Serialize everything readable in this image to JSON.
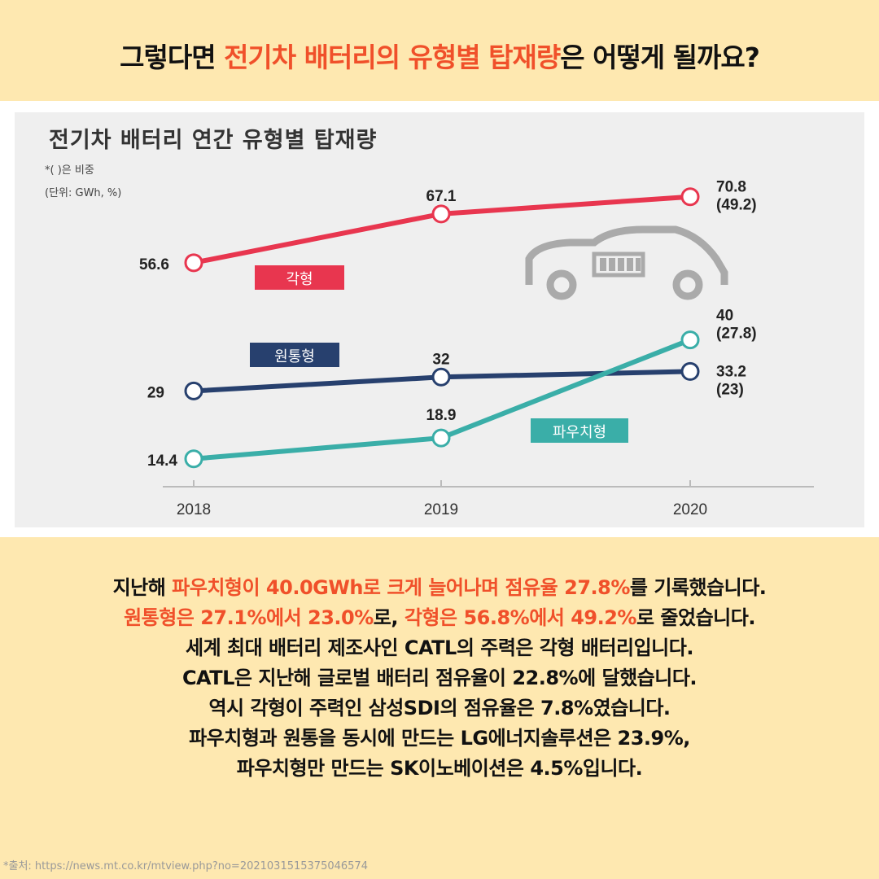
{
  "headline": {
    "pre": "그렇다면 ",
    "highlight": "전기차 배터리의 유형별 탑재량",
    "post": "은 어떻게 될까요?"
  },
  "chart_data": {
    "type": "line",
    "title": "전기차 배터리 연간 유형별 탑재량",
    "notes": [
      "*( )은 비중",
      "(단위: GWh, %)"
    ],
    "categories": [
      "2018",
      "2019",
      "2020"
    ],
    "series": [
      {
        "name": "각형",
        "values": [
          56.6,
          67.1,
          70.8
        ],
        "share_2020": "(49.2)",
        "color": "#e8364f"
      },
      {
        "name": "원통형",
        "values": [
          29,
          32,
          33.2
        ],
        "share_2020": "(23)",
        "color": "#27406e"
      },
      {
        "name": "파우치형",
        "values": [
          14.4,
          18.9,
          40
        ],
        "share_2020": "(27.8)",
        "color": "#3aaea8"
      }
    ],
    "value_labels": [
      "56.6",
      "67.1",
      "70.8",
      "29",
      "32",
      "33.2",
      "14.4",
      "18.9",
      "40"
    ],
    "grid": false
  },
  "body": [
    [
      {
        "t": "지난해 ",
        "c": 0
      },
      {
        "t": "파우치형이 40.0GWh로 크게 늘어나며 점유율 27.8%",
        "c": 1
      },
      {
        "t": "를 기록했습니다.",
        "c": 0
      }
    ],
    [
      {
        "t": "원통형은 27.1%에서 23.0%",
        "c": 1
      },
      {
        "t": "로, ",
        "c": 0
      },
      {
        "t": "각형은 56.8%에서 49.2%",
        "c": 1
      },
      {
        "t": "로 줄었습니다.",
        "c": 0
      }
    ],
    [
      {
        "t": "세계 최대 배터리 제조사인 CATL의 주력은 각형 배터리입니다.",
        "c": 0
      }
    ],
    [
      {
        "t": "CATL은 지난해 글로벌 배터리 점유율이 22.8%에 달했습니다.",
        "c": 0
      }
    ],
    [
      {
        "t": "역시 각형이 주력인 삼성SDI의 점유율은 7.8%였습니다.",
        "c": 0
      }
    ],
    [
      {
        "t": "파우치형과 원통을 동시에 만드는 LG에너지솔루션은 23.9%,",
        "c": 0
      }
    ],
    [
      {
        "t": "파우치형만 만드는 SK이노베이션은 4.5%입니다.",
        "c": 0
      }
    ]
  ],
  "source": "*출처: https://news.mt.co.kr/mtview.php?no=2021031515375046574",
  "colors": {
    "highlight": "#f0502a",
    "background": "#fee8b0"
  },
  "icons": [
    "car-battery-icon"
  ]
}
